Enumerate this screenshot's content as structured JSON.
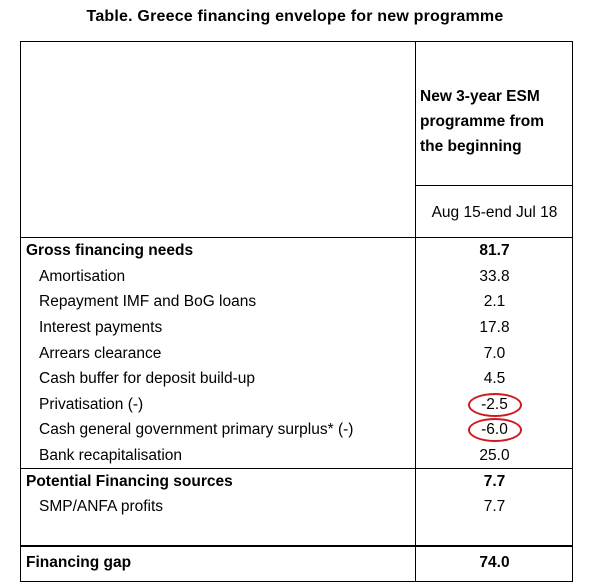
{
  "title": "Table. Greece financing envelope for new programme",
  "column_header": [
    "New 3-year ESM",
    "programme from",
    "the beginning"
  ],
  "period": "Aug 15-end Jul 18",
  "rows": [
    {
      "label": "Gross financing needs",
      "value": "81.7",
      "bold": true
    },
    {
      "label": "Amortisation",
      "value": "33.8"
    },
    {
      "label": "Repayment IMF and BoG loans",
      "value": "2.1"
    },
    {
      "label": "Interest payments",
      "value": "17.8"
    },
    {
      "label": "Arrears clearance",
      "value": "7.0"
    },
    {
      "label": "Cash buffer for deposit build-up",
      "value": "4.5"
    },
    {
      "label": "Privatisation (-)",
      "value": "-2.5",
      "highlighted": true
    },
    {
      "label": "Cash general government primary surplus* (-)",
      "value": "-6.0",
      "highlighted": true
    },
    {
      "label": "Bank recapitalisation",
      "value": "25.0"
    },
    {
      "label": "Potential Financing sources",
      "value": "7.7",
      "bold": true
    },
    {
      "label": "SMP/ANFA profits",
      "value": "7.7"
    },
    {
      "label": "Financing gap",
      "value": "74.0",
      "bold": true
    }
  ],
  "highlight_color": "#d0181e"
}
